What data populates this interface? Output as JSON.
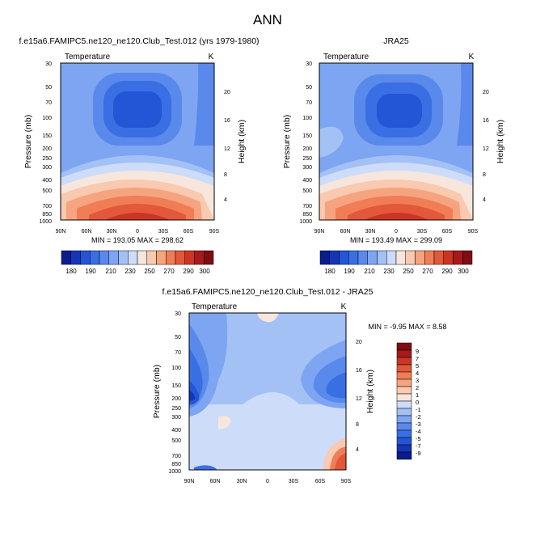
{
  "figure": {
    "title": "ANN"
  },
  "chart_data": [
    {
      "type": "heatmap",
      "id": "model",
      "panel_title": "f.e15a6.FAMIPC5.ne120_ne120.Club_Test.012 (yrs 1979-1980)",
      "variable_label": "Temperature",
      "units_label": "K",
      "xlabel": "",
      "ylabel": "Pressure (mb)",
      "y2label": "Height (km)",
      "x_ticks": [
        "90N",
        "60N",
        "30N",
        "0",
        "30S",
        "60S",
        "90S"
      ],
      "y_ticks": [
        "30",
        "50",
        "70",
        "100",
        "150",
        "200",
        "250",
        "300",
        "400",
        "500",
        "700",
        "850",
        "1000"
      ],
      "y2_ticks": [
        "20",
        "16",
        "12",
        "8",
        "4"
      ],
      "stats": "MIN = 193.05  MAX = 298.62",
      "min": 193.05,
      "max": 298.62,
      "colorbar_ticks": [
        "180",
        "190",
        "210",
        "230",
        "250",
        "270",
        "290",
        "300"
      ]
    },
    {
      "type": "heatmap",
      "id": "obs",
      "panel_title": "JRA25",
      "variable_label": "Temperature",
      "units_label": "K",
      "xlabel": "",
      "ylabel": "Pressure (mb)",
      "y2label": "Height (km)",
      "x_ticks": [
        "90N",
        "60N",
        "30N",
        "0",
        "30S",
        "60S",
        "90S"
      ],
      "y_ticks": [
        "30",
        "50",
        "70",
        "100",
        "150",
        "200",
        "250",
        "300",
        "400",
        "500",
        "700",
        "850",
        "1000"
      ],
      "y2_ticks": [
        "20",
        "16",
        "12",
        "8",
        "4"
      ],
      "stats": "MIN = 193.49  MAX = 299.09",
      "min": 193.49,
      "max": 299.09,
      "colorbar_ticks": [
        "180",
        "190",
        "210",
        "230",
        "250",
        "270",
        "290",
        "300"
      ]
    },
    {
      "type": "heatmap",
      "id": "diff",
      "panel_title": "f.e15a6.FAMIPC5.ne120_ne120.Club_Test.012 - JRA25",
      "variable_label": "Temperature",
      "units_label": "K",
      "xlabel": "",
      "ylabel": "Pressure (mb)",
      "y2label": "Height (km)",
      "x_ticks": [
        "90N",
        "60N",
        "30N",
        "0",
        "30S",
        "60S",
        "90S"
      ],
      "y_ticks": [
        "30",
        "50",
        "70",
        "100",
        "150",
        "200",
        "250",
        "300",
        "400",
        "500",
        "700",
        "850",
        "1000"
      ],
      "y2_ticks": [
        "20",
        "16",
        "12",
        "8",
        "4"
      ],
      "stats": "MIN = -9.95  MAX =  8.58",
      "min": -9.95,
      "max": 8.58,
      "colorbar_ticks": [
        "9",
        "7",
        "5",
        "4",
        "3",
        "2",
        "1",
        "0",
        "-1",
        "-2",
        "-3",
        "-4",
        "-5",
        "-7",
        "-9"
      ]
    }
  ],
  "colors": {
    "abs_scale": [
      "#0b1c8e",
      "#1435b8",
      "#2256d6",
      "#3a6fe3",
      "#5a89ec",
      "#7ea5f2",
      "#a4c1f6",
      "#cddcf9",
      "#f7e6dc",
      "#f9c9b0",
      "#f6a47f",
      "#f07d56",
      "#e3573a",
      "#cc3524",
      "#a8191b",
      "#7f0d14"
    ],
    "diff_scale": [
      "#7f0d14",
      "#a8191b",
      "#cc3524",
      "#e3573a",
      "#f07d56",
      "#f6a47f",
      "#f9c9b0",
      "#f7e6dc",
      "#cddcf9",
      "#a4c1f6",
      "#7ea5f2",
      "#5a89ec",
      "#3a6fe3",
      "#2256d6",
      "#1435b8",
      "#0b1c8e"
    ]
  }
}
